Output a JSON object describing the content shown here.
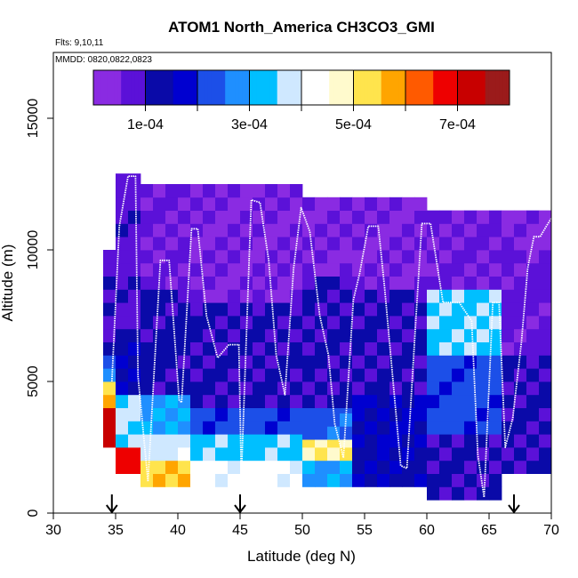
{
  "chart_data": {
    "type": "heatmap",
    "title": "ATOM1 North_America CH3CO3_GMI",
    "annotations": [
      "Flts: 9,10,11",
      "MMDD: 0820,0822,0823"
    ],
    "xlabel": "Latitude (deg N)",
    "ylabel": "Altitude (m)",
    "xlim": [
      30,
      70
    ],
    "ylim": [
      0,
      17500
    ],
    "xticks": [
      30,
      35,
      40,
      45,
      50,
      55,
      60,
      65,
      70
    ],
    "yticks": [
      0,
      5000,
      10000,
      15000
    ],
    "grid": false,
    "colorbar": {
      "position": "top-inside",
      "ticks": [
        "1e-04",
        "3e-04",
        "5e-04",
        "7e-04"
      ],
      "tick_values": [
        0.0001,
        0.0003,
        0.0005,
        0.0007
      ],
      "range": [
        0,
        0.0008
      ],
      "colors": [
        "#8a2be2",
        "#5b11d8",
        "#0a0aa8",
        "#0000d0",
        "#1c4fe8",
        "#1f8fff",
        "#00bfff",
        "#cfe8ff",
        "#ffffff",
        "#fffacd",
        "#ffe44d",
        "#ffa500",
        "#ff5a00",
        "#ee0000",
        "#c80000",
        "#9b1b1b"
      ]
    },
    "field": {
      "description": "Modelled CH3CO3 mixing ratio curtain along the flight track",
      "columns": [
        {
          "lat": [
            34.0,
            35.0
          ],
          "alt_range": [
            2500,
            10000
          ],
          "layers": [
            [
              2500,
              4000,
              0.00072
            ],
            [
              4000,
              5000,
              0.00056
            ],
            [
              5000,
              6000,
              0.00025
            ],
            [
              6000,
              10000,
              9e-05
            ]
          ]
        },
        {
          "lat": [
            35.0,
            37.0
          ],
          "alt_range": [
            1500,
            12900
          ],
          "layers": [
            [
              1500,
              2500,
              0.00068
            ],
            [
              2500,
              4500,
              0.00035
            ],
            [
              4500,
              7000,
              0.00015
            ],
            [
              7000,
              12900,
              8e-05
            ]
          ]
        },
        {
          "lat": [
            37.0,
            41.0
          ],
          "alt_range": [
            1000,
            12500
          ],
          "layers": [
            [
              1000,
              2000,
              0.00054
            ],
            [
              2000,
              3000,
              0.00038
            ],
            [
              3000,
              4500,
              0.0003
            ],
            [
              4500,
              8500,
              0.00012
            ],
            [
              8500,
              12500,
              5e-05
            ]
          ]
        },
        {
          "lat": [
            41.0,
            50.0
          ],
          "alt_range": [
            1000,
            12500
          ],
          "layers": [
            [
              1000,
              2000,
              0.00042
            ],
            [
              2000,
              3000,
              0.00033
            ],
            [
              3000,
              4000,
              0.00022
            ],
            [
              4000,
              8000,
              0.0001
            ],
            [
              8000,
              12500,
              4e-05
            ]
          ]
        },
        {
          "lat": [
            50.0,
            54.0
          ],
          "alt_range": [
            1000,
            12000
          ],
          "layers": [
            [
              1000,
              2000,
              0.0003
            ],
            [
              2000,
              2800,
              0.0005
            ],
            [
              2800,
              4000,
              0.00022
            ],
            [
              4000,
              9000,
              0.0001
            ],
            [
              9000,
              12000,
              4e-05
            ]
          ]
        },
        {
          "lat": [
            54.0,
            60.0
          ],
          "alt_range": [
            1000,
            12000
          ],
          "layers": [
            [
              1000,
              2500,
              0.00014
            ],
            [
              2500,
              4500,
              0.00016
            ],
            [
              4500,
              8500,
              0.00011
            ],
            [
              8500,
              12000,
              4e-05
            ]
          ]
        },
        {
          "lat": [
            60.0,
            66.0
          ],
          "alt_range": [
            500,
            11500
          ],
          "layers": [
            [
              500,
              3000,
              0.0001
            ],
            [
              3000,
              6000,
              0.00022
            ],
            [
              6000,
              8500,
              0.00034
            ],
            [
              8500,
              11500,
              5e-05
            ]
          ]
        },
        {
          "lat": [
            66.0,
            70.0
          ],
          "alt_range": [
            1500,
            11500
          ],
          "layers": [
            [
              1500,
              6000,
              0.0001
            ],
            [
              6000,
              10000,
              7e-05
            ],
            [
              10000,
              11500,
              3e-05
            ]
          ]
        }
      ]
    },
    "flight_track": {
      "x": [
        34.7,
        35.3,
        36.0,
        36.6,
        36.8,
        37.6,
        38.6,
        39.3,
        40.1,
        40.3,
        41.1,
        41.6,
        42.3,
        43.2,
        44.1,
        44.9,
        45.1,
        45.9,
        46.6,
        47.3,
        47.9,
        48.6,
        49.3,
        49.9,
        50.6,
        51.4,
        52.1,
        52.6,
        53.3,
        54.1,
        54.6,
        55.3,
        56.1,
        56.6,
        57.9,
        58.4,
        59.1,
        59.6,
        60.3,
        61.3,
        61.9,
        62.6,
        63.6,
        64.1,
        64.6,
        65.3,
        65.8,
        66.3,
        66.9,
        67.6,
        68.1,
        68.6,
        69.1,
        69.6,
        70.0
      ],
      "y": [
        5000,
        10900,
        12800,
        12800,
        5200,
        1200,
        9600,
        9600,
        4300,
        4200,
        10800,
        10800,
        7500,
        5900,
        6400,
        6400,
        1400,
        11900,
        11800,
        9600,
        6000,
        4500,
        9300,
        11600,
        10700,
        7500,
        6000,
        3400,
        2100,
        8100,
        9100,
        10900,
        10900,
        8600,
        1800,
        1700,
        7200,
        11000,
        11000,
        8000,
        8000,
        8000,
        7300,
        2200,
        600,
        8000,
        8000,
        2500,
        3600,
        6500,
        9300,
        10500,
        10500,
        10900,
        11200
      ]
    },
    "markers": {
      "type": "down-arrow",
      "x": [
        34.7,
        45.0,
        67.0
      ]
    }
  }
}
